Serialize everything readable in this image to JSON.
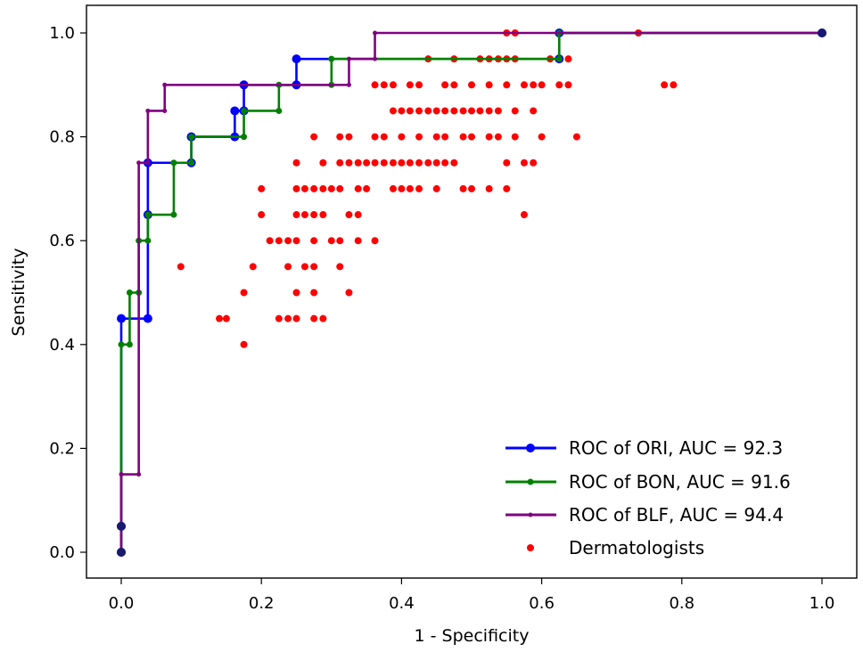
{
  "chart_data": {
    "type": "line",
    "title": "",
    "xlabel": "1 - Specificity",
    "ylabel": "Sensitivity",
    "xlim": [
      -0.05,
      1.05
    ],
    "ylim": [
      -0.05,
      1.05
    ],
    "xticks": [
      0.0,
      0.2,
      0.4,
      0.6,
      0.8,
      1.0
    ],
    "xtick_labels": [
      "0.0",
      "0.2",
      "0.4",
      "0.6",
      "0.8",
      "1.0"
    ],
    "yticks": [
      0.0,
      0.2,
      0.4,
      0.6,
      0.8,
      1.0
    ],
    "ytick_labels": [
      "0.0",
      "0.2",
      "0.4",
      "0.6",
      "0.8",
      "1.0"
    ],
    "grid": false,
    "legend_position": "lower-right",
    "series": [
      {
        "name": "ROC of ORI, AUC = 92.3",
        "color": "#0000ff",
        "marker": "large-dot",
        "x": [
          0,
          0,
          0,
          0.038,
          0.038,
          0.038,
          0.1,
          0.1,
          0.1,
          0.162,
          0.162,
          0.175,
          0.175,
          0.25,
          0.25,
          0.625,
          0.625,
          1.0
        ],
        "y": [
          0,
          0.05,
          0.45,
          0.45,
          0.65,
          0.75,
          0.75,
          0.8,
          0.8,
          0.8,
          0.85,
          0.85,
          0.9,
          0.9,
          0.95,
          0.95,
          1.0,
          1.0
        ]
      },
      {
        "name": "ROC of BON, AUC = 91.6",
        "color": "#008000",
        "marker": "dot",
        "x": [
          0,
          0,
          0,
          0.012,
          0.012,
          0.025,
          0.025,
          0.038,
          0.038,
          0.075,
          0.075,
          0.1,
          0.1,
          0.175,
          0.175,
          0.225,
          0.225,
          0.3,
          0.3,
          0.625,
          0.625,
          1.0
        ],
        "y": [
          0,
          0.05,
          0.4,
          0.4,
          0.5,
          0.5,
          0.6,
          0.6,
          0.65,
          0.65,
          0.75,
          0.75,
          0.8,
          0.8,
          0.85,
          0.85,
          0.9,
          0.9,
          0.95,
          0.95,
          1.0,
          1.0
        ]
      },
      {
        "name": "ROC of BLF, AUC = 94.4",
        "color": "#800080",
        "marker": "small-dot",
        "x": [
          0,
          0,
          0,
          0.025,
          0.025,
          0.038,
          0.038,
          0.062,
          0.062,
          0.325,
          0.325,
          0.362,
          0.362,
          1.0
        ],
        "y": [
          0,
          0.05,
          0.15,
          0.15,
          0.75,
          0.75,
          0.85,
          0.85,
          0.9,
          0.9,
          0.95,
          0.95,
          1.0,
          1.0
        ]
      }
    ],
    "scatter": {
      "name": "Dermatologists",
      "color": "#ff0000",
      "points": [
        [
          0.085,
          0.55
        ],
        [
          0.14,
          0.45
        ],
        [
          0.15,
          0.45
        ],
        [
          0.175,
          0.5
        ],
        [
          0.175,
          0.4
        ],
        [
          0.188,
          0.55
        ],
        [
          0.2,
          0.7
        ],
        [
          0.2,
          0.65
        ],
        [
          0.212,
          0.6
        ],
        [
          0.225,
          0.6
        ],
        [
          0.225,
          0.45
        ],
        [
          0.238,
          0.6
        ],
        [
          0.238,
          0.45
        ],
        [
          0.25,
          0.45
        ],
        [
          0.238,
          0.55
        ],
        [
          0.25,
          0.5
        ],
        [
          0.25,
          0.6
        ],
        [
          0.25,
          0.65
        ],
        [
          0.25,
          0.7
        ],
        [
          0.25,
          0.75
        ],
        [
          0.262,
          0.7
        ],
        [
          0.262,
          0.65
        ],
        [
          0.262,
          0.55
        ],
        [
          0.275,
          0.7
        ],
        [
          0.275,
          0.65
        ],
        [
          0.275,
          0.6
        ],
        [
          0.275,
          0.55
        ],
        [
          0.275,
          0.5
        ],
        [
          0.275,
          0.45
        ],
        [
          0.288,
          0.45
        ],
        [
          0.275,
          0.8
        ],
        [
          0.288,
          0.7
        ],
        [
          0.288,
          0.65
        ],
        [
          0.288,
          0.75
        ],
        [
          0.3,
          0.6
        ],
        [
          0.3,
          0.7
        ],
        [
          0.312,
          0.55
        ],
        [
          0.312,
          0.6
        ],
        [
          0.312,
          0.7
        ],
        [
          0.312,
          0.75
        ],
        [
          0.312,
          0.8
        ],
        [
          0.325,
          0.5
        ],
        [
          0.325,
          0.65
        ],
        [
          0.325,
          0.75
        ],
        [
          0.325,
          0.8
        ],
        [
          0.338,
          0.6
        ],
        [
          0.338,
          0.75
        ],
        [
          0.338,
          0.65
        ],
        [
          0.338,
          0.7
        ],
        [
          0.35,
          0.75
        ],
        [
          0.35,
          0.7
        ],
        [
          0.362,
          0.6
        ],
        [
          0.362,
          0.75
        ],
        [
          0.362,
          0.8
        ],
        [
          0.362,
          0.9
        ],
        [
          0.375,
          0.75
        ],
        [
          0.375,
          0.8
        ],
        [
          0.375,
          0.9
        ],
        [
          0.388,
          0.75
        ],
        [
          0.388,
          0.7
        ],
        [
          0.388,
          0.85
        ],
        [
          0.388,
          0.9
        ],
        [
          0.4,
          0.7
        ],
        [
          0.4,
          0.75
        ],
        [
          0.4,
          0.8
        ],
        [
          0.4,
          0.85
        ],
        [
          0.412,
          0.7
        ],
        [
          0.412,
          0.85
        ],
        [
          0.412,
          0.9
        ],
        [
          0.412,
          0.75
        ],
        [
          0.425,
          0.7
        ],
        [
          0.425,
          0.75
        ],
        [
          0.425,
          0.8
        ],
        [
          0.425,
          0.85
        ],
        [
          0.425,
          0.9
        ],
        [
          0.438,
          0.85
        ],
        [
          0.438,
          0.75
        ],
        [
          0.438,
          0.95
        ],
        [
          0.45,
          0.7
        ],
        [
          0.45,
          0.8
        ],
        [
          0.45,
          0.85
        ],
        [
          0.45,
          0.75
        ],
        [
          0.462,
          0.75
        ],
        [
          0.462,
          0.8
        ],
        [
          0.462,
          0.85
        ],
        [
          0.462,
          0.9
        ],
        [
          0.475,
          0.75
        ],
        [
          0.475,
          0.85
        ],
        [
          0.475,
          0.9
        ],
        [
          0.475,
          0.95
        ],
        [
          0.488,
          0.7
        ],
        [
          0.488,
          0.8
        ],
        [
          0.488,
          0.85
        ],
        [
          0.5,
          0.7
        ],
        [
          0.5,
          0.8
        ],
        [
          0.5,
          0.85
        ],
        [
          0.5,
          0.9
        ],
        [
          0.512,
          0.85
        ],
        [
          0.512,
          0.95
        ],
        [
          0.525,
          0.7
        ],
        [
          0.525,
          0.8
        ],
        [
          0.525,
          0.85
        ],
        [
          0.525,
          0.9
        ],
        [
          0.525,
          0.95
        ],
        [
          0.538,
          0.8
        ],
        [
          0.538,
          0.85
        ],
        [
          0.538,
          0.95
        ],
        [
          0.55,
          0.75
        ],
        [
          0.55,
          0.7
        ],
        [
          0.55,
          0.9
        ],
        [
          0.55,
          1.0
        ],
        [
          0.55,
          0.95
        ],
        [
          0.562,
          0.8
        ],
        [
          0.562,
          0.85
        ],
        [
          0.562,
          0.95
        ],
        [
          0.562,
          1.0
        ],
        [
          0.575,
          0.65
        ],
        [
          0.575,
          0.75
        ],
        [
          0.575,
          0.9
        ],
        [
          0.588,
          0.75
        ],
        [
          0.588,
          0.85
        ],
        [
          0.588,
          0.9
        ],
        [
          0.6,
          0.8
        ],
        [
          0.6,
          0.9
        ],
        [
          0.612,
          0.95
        ],
        [
          0.625,
          0.9
        ],
        [
          0.638,
          0.9
        ],
        [
          0.638,
          0.95
        ],
        [
          0.65,
          0.8
        ],
        [
          0.738,
          1.0
        ],
        [
          0.775,
          0.9
        ],
        [
          0.788,
          0.9
        ]
      ]
    }
  }
}
